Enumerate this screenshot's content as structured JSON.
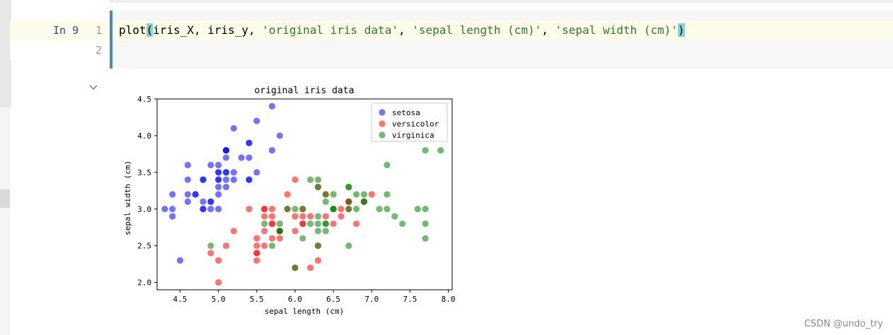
{
  "editor": {
    "prompt": "In 9",
    "line_numbers": [
      "1",
      "2"
    ],
    "code": {
      "fn": "plot",
      "open_paren": "(",
      "args_plain": "iris_X, iris_y, ",
      "arg_title": "'original iris data'",
      "sep1": ", ",
      "arg_xlabel": "'sepal length (cm)'",
      "sep2": ", ",
      "arg_ylabel": "'sepal width (cm)'",
      "close_paren": ")"
    },
    "collapse_icon": "chevron-down-icon"
  },
  "chart_data": {
    "type": "scatter",
    "title": "original iris data",
    "xlabel": "sepal length (cm)",
    "ylabel": "sepal width (cm)",
    "xlim": [
      4.2,
      8.05
    ],
    "ylim": [
      1.9,
      4.5
    ],
    "x_ticks": [
      "4.5",
      "5.0",
      "5.5",
      "6.0",
      "6.5",
      "7.0",
      "7.5",
      "8.0"
    ],
    "y_ticks": [
      "2.0",
      "2.5",
      "3.0",
      "3.5",
      "4.0",
      "4.5"
    ],
    "legend_position": "top-right",
    "series": [
      {
        "name": "setosa",
        "color": "#0000ff",
        "points": [
          [
            5.1,
            3.5
          ],
          [
            4.9,
            3.0
          ],
          [
            4.7,
            3.2
          ],
          [
            4.6,
            3.1
          ],
          [
            5.0,
            3.6
          ],
          [
            5.4,
            3.9
          ],
          [
            4.6,
            3.4
          ],
          [
            5.0,
            3.4
          ],
          [
            4.4,
            2.9
          ],
          [
            4.9,
            3.1
          ],
          [
            5.4,
            3.7
          ],
          [
            4.8,
            3.4
          ],
          [
            4.8,
            3.0
          ],
          [
            4.3,
            3.0
          ],
          [
            5.8,
            4.0
          ],
          [
            5.7,
            4.4
          ],
          [
            5.4,
            3.9
          ],
          [
            5.1,
            3.5
          ],
          [
            5.7,
            3.8
          ],
          [
            5.1,
            3.8
          ],
          [
            5.4,
            3.4
          ],
          [
            5.1,
            3.7
          ],
          [
            4.6,
            3.6
          ],
          [
            5.1,
            3.3
          ],
          [
            4.8,
            3.4
          ],
          [
            5.0,
            3.0
          ],
          [
            5.0,
            3.4
          ],
          [
            5.2,
            3.5
          ],
          [
            5.2,
            3.4
          ],
          [
            4.7,
            3.2
          ],
          [
            4.8,
            3.1
          ],
          [
            5.4,
            3.4
          ],
          [
            5.2,
            4.1
          ],
          [
            5.5,
            4.2
          ],
          [
            4.9,
            3.1
          ],
          [
            5.0,
            3.2
          ],
          [
            5.5,
            3.5
          ],
          [
            4.9,
            3.6
          ],
          [
            4.4,
            3.0
          ],
          [
            5.1,
            3.4
          ],
          [
            5.0,
            3.5
          ],
          [
            4.5,
            2.3
          ],
          [
            4.4,
            3.2
          ],
          [
            5.0,
            3.5
          ],
          [
            5.1,
            3.8
          ],
          [
            4.8,
            3.0
          ],
          [
            5.1,
            3.8
          ],
          [
            4.6,
            3.2
          ],
          [
            5.3,
            3.7
          ],
          [
            5.0,
            3.3
          ]
        ]
      },
      {
        "name": "versicolor",
        "color": "#ff0000",
        "points": [
          [
            7.0,
            3.2
          ],
          [
            6.4,
            3.2
          ],
          [
            6.9,
            3.1
          ],
          [
            5.5,
            2.3
          ],
          [
            6.5,
            2.8
          ],
          [
            5.7,
            2.8
          ],
          [
            6.3,
            3.3
          ],
          [
            4.9,
            2.4
          ],
          [
            6.6,
            2.9
          ],
          [
            5.2,
            2.7
          ],
          [
            5.0,
            2.0
          ],
          [
            5.9,
            3.0
          ],
          [
            6.0,
            2.2
          ],
          [
            6.1,
            2.9
          ],
          [
            5.6,
            2.9
          ],
          [
            6.7,
            3.1
          ],
          [
            5.6,
            3.0
          ],
          [
            5.8,
            2.7
          ],
          [
            6.2,
            2.2
          ],
          [
            5.6,
            2.5
          ],
          [
            5.9,
            3.2
          ],
          [
            6.1,
            2.8
          ],
          [
            6.3,
            2.5
          ],
          [
            6.1,
            2.8
          ],
          [
            6.4,
            2.9
          ],
          [
            6.6,
            3.0
          ],
          [
            6.8,
            2.8
          ],
          [
            6.7,
            3.0
          ],
          [
            6.0,
            2.9
          ],
          [
            5.7,
            2.6
          ],
          [
            5.5,
            2.4
          ],
          [
            5.5,
            2.4
          ],
          [
            5.8,
            2.7
          ],
          [
            6.0,
            2.7
          ],
          [
            5.4,
            3.0
          ],
          [
            6.0,
            3.4
          ],
          [
            6.7,
            3.1
          ],
          [
            6.3,
            2.3
          ],
          [
            5.6,
            3.0
          ],
          [
            5.5,
            2.5
          ],
          [
            5.5,
            2.6
          ],
          [
            6.1,
            3.0
          ],
          [
            5.8,
            2.6
          ],
          [
            5.0,
            2.3
          ],
          [
            5.6,
            2.7
          ],
          [
            5.7,
            3.0
          ],
          [
            5.7,
            2.9
          ],
          [
            6.2,
            2.9
          ],
          [
            5.1,
            2.5
          ],
          [
            5.7,
            2.8
          ]
        ]
      },
      {
        "name": "virginica",
        "color": "#008000",
        "points": [
          [
            6.3,
            3.3
          ],
          [
            5.8,
            2.7
          ],
          [
            7.1,
            3.0
          ],
          [
            6.3,
            2.9
          ],
          [
            6.5,
            3.0
          ],
          [
            7.6,
            3.0
          ],
          [
            4.9,
            2.5
          ],
          [
            7.3,
            2.9
          ],
          [
            6.7,
            2.5
          ],
          [
            7.2,
            3.6
          ],
          [
            6.5,
            3.2
          ],
          [
            6.4,
            2.7
          ],
          [
            6.8,
            3.0
          ],
          [
            5.7,
            2.5
          ],
          [
            5.8,
            2.8
          ],
          [
            6.4,
            3.2
          ],
          [
            6.5,
            3.0
          ],
          [
            7.7,
            3.8
          ],
          [
            7.7,
            2.6
          ],
          [
            6.0,
            2.2
          ],
          [
            6.9,
            3.2
          ],
          [
            5.6,
            2.8
          ],
          [
            7.7,
            2.8
          ],
          [
            6.3,
            2.7
          ],
          [
            6.7,
            3.3
          ],
          [
            7.2,
            3.2
          ],
          [
            6.2,
            2.8
          ],
          [
            6.1,
            3.0
          ],
          [
            6.4,
            2.8
          ],
          [
            7.2,
            3.0
          ],
          [
            7.4,
            2.8
          ],
          [
            7.9,
            3.8
          ],
          [
            6.4,
            2.8
          ],
          [
            6.3,
            2.8
          ],
          [
            6.1,
            2.6
          ],
          [
            7.7,
            3.0
          ],
          [
            6.3,
            3.4
          ],
          [
            6.4,
            3.1
          ],
          [
            6.0,
            3.0
          ],
          [
            6.9,
            3.1
          ],
          [
            6.7,
            3.1
          ],
          [
            6.9,
            3.1
          ],
          [
            5.8,
            2.7
          ],
          [
            6.8,
            3.2
          ],
          [
            6.7,
            3.3
          ],
          [
            6.7,
            3.0
          ],
          [
            6.3,
            2.5
          ],
          [
            6.5,
            3.0
          ],
          [
            6.2,
            3.4
          ],
          [
            5.9,
            3.0
          ]
        ]
      }
    ]
  },
  "watermark": "CSDN @undo_try"
}
